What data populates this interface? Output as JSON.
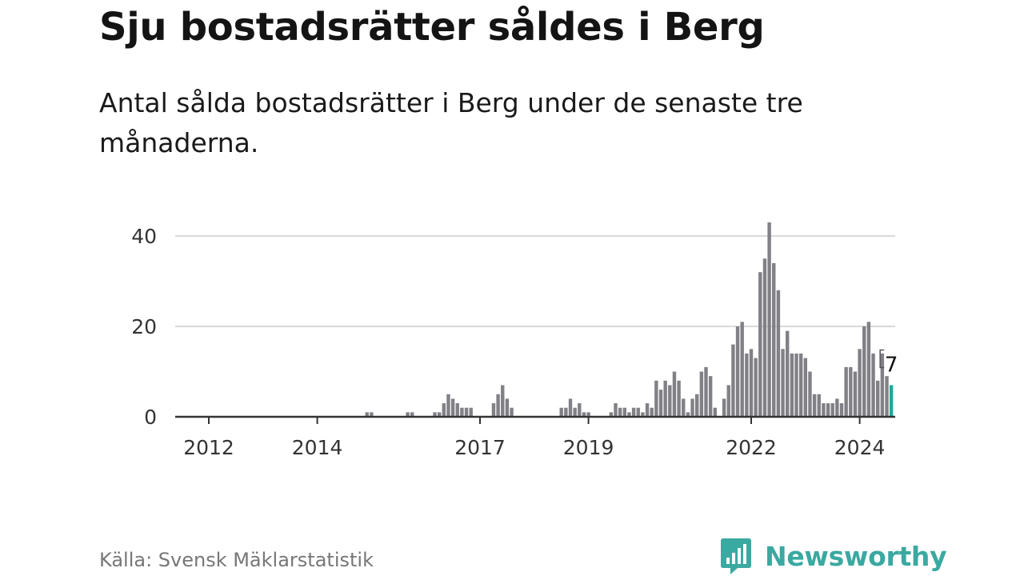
{
  "header": {
    "title": "Sju bostadsrätter såldes i Berg",
    "subtitle": "Antal sålda bostadsrätter i Berg under de senaste tre månaderna."
  },
  "footer": {
    "source": "Källa: Svensk Mäklarstatistik",
    "brand": "Newsworthy"
  },
  "colors": {
    "bar": "#808086",
    "highlight": "#26a69a",
    "grid": "#d9d9d9",
    "axis": "#333333",
    "brand": "#3aa9a1"
  },
  "chart_data": {
    "type": "bar",
    "title": "Sju bostadsrätter såldes i Berg",
    "xlabel": "",
    "ylabel": "",
    "ylim": [
      0,
      43
    ],
    "y_ticks": [
      0,
      20,
      40
    ],
    "x_tick_labels": [
      {
        "label": "2012",
        "index": 0
      },
      {
        "label": "2014",
        "index": 24
      },
      {
        "label": "2017",
        "index": 60
      },
      {
        "label": "2019",
        "index": 84
      },
      {
        "label": "2022",
        "index": 120
      },
      {
        "label": "2024",
        "index": 144
      }
    ],
    "start": "2012-01",
    "values": [
      0,
      0,
      0,
      0,
      0,
      0,
      0,
      0,
      0,
      0,
      0,
      0,
      0,
      0,
      0,
      0,
      0,
      0,
      0,
      0,
      0,
      0,
      0,
      0,
      0,
      0,
      0,
      0,
      0,
      0,
      0,
      0,
      0,
      0,
      0,
      1,
      1,
      0,
      0,
      0,
      0,
      0,
      0,
      0,
      1,
      1,
      0,
      0,
      0,
      0,
      1,
      1,
      3,
      5,
      4,
      3,
      2,
      2,
      2,
      0,
      0,
      0,
      0,
      3,
      5,
      7,
      4,
      2,
      0,
      0,
      0,
      0,
      0,
      0,
      0,
      0,
      0,
      0,
      2,
      2,
      4,
      2,
      3,
      1,
      1,
      0,
      0,
      0,
      0,
      1,
      3,
      2,
      2,
      1,
      2,
      2,
      1,
      3,
      2,
      8,
      6,
      8,
      7,
      10,
      8,
      4,
      1,
      4,
      5,
      10,
      11,
      9,
      2,
      0,
      4,
      7,
      16,
      20,
      21,
      14,
      15,
      13,
      32,
      35,
      43,
      34,
      28,
      15,
      19,
      14,
      14,
      14,
      13,
      10,
      5,
      5,
      3,
      3,
      3,
      4,
      3,
      11,
      11,
      10,
      15,
      20,
      21,
      14,
      8,
      14,
      9,
      7
    ],
    "highlight_index": 151,
    "highlight_value": 7,
    "annotation": "7"
  }
}
